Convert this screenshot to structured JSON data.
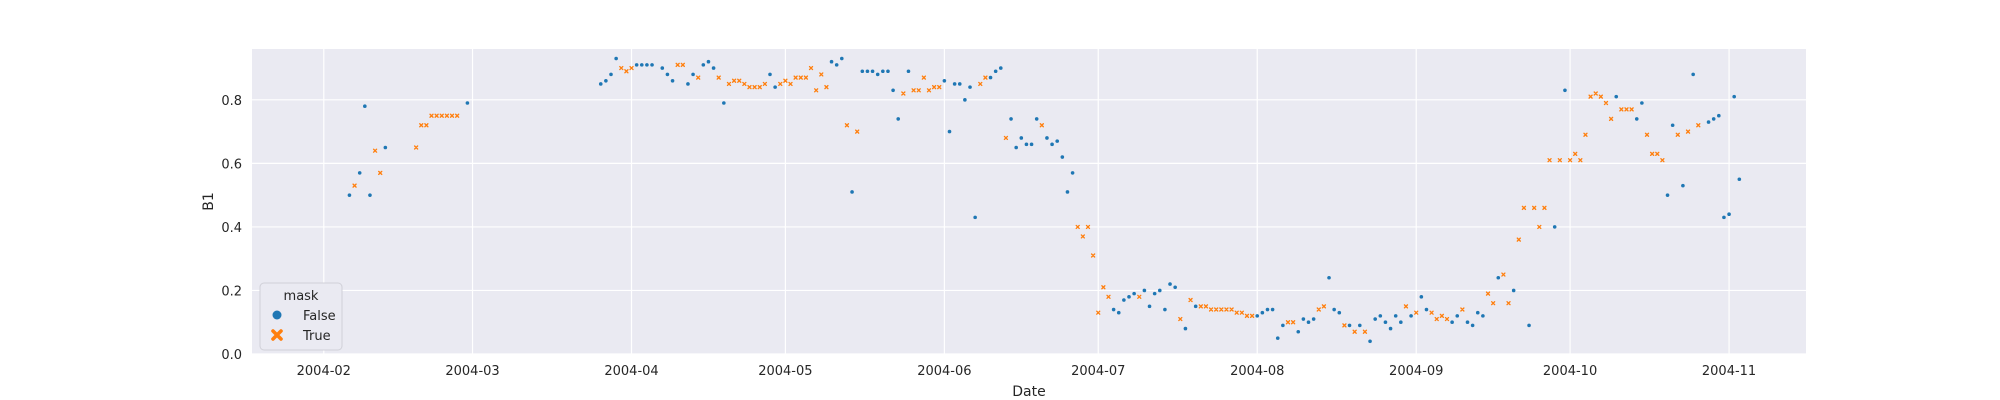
{
  "chart_data": {
    "type": "scatter",
    "title": "",
    "xlabel": "Date",
    "ylabel": "B1",
    "x_type": "date",
    "xlim": [
      "2004-01-18",
      "2004-11-16"
    ],
    "ylim": [
      0,
      0.96
    ],
    "x_ticks": [
      {
        "value": "2004-02-01",
        "label": "2004-02"
      },
      {
        "value": "2004-03-01",
        "label": "2004-03"
      },
      {
        "value": "2004-04-01",
        "label": "2004-04"
      },
      {
        "value": "2004-05-01",
        "label": "2004-05"
      },
      {
        "value": "2004-06-01",
        "label": "2004-06"
      },
      {
        "value": "2004-07-01",
        "label": "2004-07"
      },
      {
        "value": "2004-08-01",
        "label": "2004-08"
      },
      {
        "value": "2004-09-01",
        "label": "2004-09"
      },
      {
        "value": "2004-10-01",
        "label": "2004-10"
      },
      {
        "value": "2004-11-01",
        "label": "2004-11"
      }
    ],
    "y_ticks": [
      {
        "value": 0.0,
        "label": "0.0"
      },
      {
        "value": 0.2,
        "label": "0.2"
      },
      {
        "value": 0.4,
        "label": "0.4"
      },
      {
        "value": 0.6,
        "label": "0.6"
      },
      {
        "value": 0.8,
        "label": "0.8"
      }
    ],
    "grid": true,
    "background_color": "#eaeaf2",
    "grid_color": "#ffffff",
    "legend": {
      "title": "mask",
      "position": "lower-left",
      "entries": [
        {
          "label": "False",
          "marker": "circle",
          "color": "#1f77b4"
        },
        {
          "label": "True",
          "marker": "x",
          "color": "#ff7f0e"
        }
      ]
    },
    "series": [
      {
        "name": "False",
        "marker": "circle",
        "color": "#1f77b4",
        "x": [
          "2004-02-06",
          "2004-02-08",
          "2004-02-09",
          "2004-02-10",
          "2004-02-13",
          "2004-02-29",
          "2004-03-26",
          "2004-03-27",
          "2004-03-28",
          "2004-03-29",
          "2004-04-02",
          "2004-04-03",
          "2004-04-04",
          "2004-04-05",
          "2004-04-07",
          "2004-04-08",
          "2004-04-09",
          "2004-04-12",
          "2004-04-13",
          "2004-04-15",
          "2004-04-16",
          "2004-04-17",
          "2004-04-19",
          "2004-04-28",
          "2004-04-29",
          "2004-05-10",
          "2004-05-11",
          "2004-05-12",
          "2004-05-14",
          "2004-05-16",
          "2004-05-17",
          "2004-05-18",
          "2004-05-19",
          "2004-05-20",
          "2004-05-21",
          "2004-05-22",
          "2004-05-23",
          "2004-05-25",
          "2004-06-01",
          "2004-06-02",
          "2004-06-03",
          "2004-06-04",
          "2004-06-05",
          "2004-06-06",
          "2004-06-07",
          "2004-06-10",
          "2004-06-11",
          "2004-06-12",
          "2004-06-14",
          "2004-06-15",
          "2004-06-16",
          "2004-06-17",
          "2004-06-18",
          "2004-06-19",
          "2004-06-21",
          "2004-06-22",
          "2004-06-23",
          "2004-06-24",
          "2004-06-25",
          "2004-06-26",
          "2004-07-04",
          "2004-07-05",
          "2004-07-06",
          "2004-07-07",
          "2004-07-08",
          "2004-07-10",
          "2004-07-11",
          "2004-07-12",
          "2004-07-13",
          "2004-07-14",
          "2004-07-15",
          "2004-07-16",
          "2004-07-18",
          "2004-07-20",
          "2004-08-01",
          "2004-08-02",
          "2004-08-03",
          "2004-08-04",
          "2004-08-05",
          "2004-08-06",
          "2004-08-09",
          "2004-08-10",
          "2004-08-11",
          "2004-08-12",
          "2004-08-15",
          "2004-08-16",
          "2004-08-17",
          "2004-08-19",
          "2004-08-21",
          "2004-08-23",
          "2004-08-24",
          "2004-08-25",
          "2004-08-26",
          "2004-08-27",
          "2004-08-28",
          "2004-08-29",
          "2004-08-31",
          "2004-09-02",
          "2004-09-03",
          "2004-09-08",
          "2004-09-09",
          "2004-09-11",
          "2004-09-12",
          "2004-09-13",
          "2004-09-14",
          "2004-09-17",
          "2004-09-20",
          "2004-09-23",
          "2004-09-28",
          "2004-09-30",
          "2004-10-10",
          "2004-10-14",
          "2004-10-15",
          "2004-10-20",
          "2004-10-21",
          "2004-10-23",
          "2004-10-25",
          "2004-10-28",
          "2004-10-29",
          "2004-10-30",
          "2004-10-31",
          "2004-11-01",
          "2004-11-02",
          "2004-11-03"
        ],
        "y": [
          0.5,
          0.57,
          0.78,
          0.5,
          0.65,
          0.79,
          0.85,
          0.86,
          0.88,
          0.93,
          0.91,
          0.91,
          0.91,
          0.91,
          0.9,
          0.88,
          0.86,
          0.85,
          0.88,
          0.91,
          0.92,
          0.9,
          0.79,
          0.88,
          0.84,
          0.92,
          0.91,
          0.93,
          0.51,
          0.89,
          0.89,
          0.89,
          0.88,
          0.89,
          0.89,
          0.83,
          0.74,
          0.89,
          0.86,
          0.7,
          0.85,
          0.85,
          0.8,
          0.84,
          0.43,
          0.87,
          0.89,
          0.9,
          0.74,
          0.65,
          0.68,
          0.66,
          0.66,
          0.74,
          0.68,
          0.66,
          0.67,
          0.62,
          0.51,
          0.57,
          0.14,
          0.13,
          0.17,
          0.18,
          0.19,
          0.2,
          0.15,
          0.19,
          0.2,
          0.14,
          0.22,
          0.21,
          0.08,
          0.15,
          0.12,
          0.13,
          0.14,
          0.14,
          0.05,
          0.09,
          0.07,
          0.11,
          0.1,
          0.11,
          0.24,
          0.14,
          0.13,
          0.09,
          0.09,
          0.04,
          0.11,
          0.12,
          0.1,
          0.08,
          0.12,
          0.1,
          0.12,
          0.18,
          0.14,
          0.1,
          0.12,
          0.1,
          0.09,
          0.13,
          0.12,
          0.24,
          0.2,
          0.09,
          0.4,
          0.83,
          0.81,
          0.74,
          0.79,
          0.5,
          0.72,
          0.53,
          0.88,
          0.73,
          0.74,
          0.75,
          0.43,
          0.44,
          0.81,
          0.55
        ]
      },
      {
        "name": "True",
        "marker": "x",
        "color": "#ff7f0e",
        "x": [
          "2004-02-07",
          "2004-02-11",
          "2004-02-12",
          "2004-02-19",
          "2004-02-20",
          "2004-02-21",
          "2004-02-22",
          "2004-02-23",
          "2004-02-24",
          "2004-02-25",
          "2004-02-26",
          "2004-02-27",
          "2004-03-30",
          "2004-03-31",
          "2004-04-01",
          "2004-04-10",
          "2004-04-11",
          "2004-04-14",
          "2004-04-18",
          "2004-04-20",
          "2004-04-21",
          "2004-04-22",
          "2004-04-23",
          "2004-04-24",
          "2004-04-25",
          "2004-04-26",
          "2004-04-27",
          "2004-04-30",
          "2004-05-01",
          "2004-05-02",
          "2004-05-03",
          "2004-05-04",
          "2004-05-05",
          "2004-05-06",
          "2004-05-07",
          "2004-05-08",
          "2004-05-09",
          "2004-05-13",
          "2004-05-15",
          "2004-05-24",
          "2004-05-26",
          "2004-05-27",
          "2004-05-28",
          "2004-05-29",
          "2004-05-30",
          "2004-05-31",
          "2004-06-08",
          "2004-06-09",
          "2004-06-13",
          "2004-06-20",
          "2004-06-27",
          "2004-06-28",
          "2004-06-29",
          "2004-06-30",
          "2004-07-01",
          "2004-07-02",
          "2004-07-03",
          "2004-07-09",
          "2004-07-17",
          "2004-07-19",
          "2004-07-21",
          "2004-07-22",
          "2004-07-23",
          "2004-07-24",
          "2004-07-25",
          "2004-07-26",
          "2004-07-27",
          "2004-07-28",
          "2004-07-29",
          "2004-07-30",
          "2004-07-31",
          "2004-08-07",
          "2004-08-08",
          "2004-08-13",
          "2004-08-14",
          "2004-08-18",
          "2004-08-20",
          "2004-08-22",
          "2004-08-30",
          "2004-09-01",
          "2004-09-04",
          "2004-09-05",
          "2004-09-06",
          "2004-09-07",
          "2004-09-10",
          "2004-09-15",
          "2004-09-16",
          "2004-09-18",
          "2004-09-19",
          "2004-09-21",
          "2004-09-22",
          "2004-09-24",
          "2004-09-25",
          "2004-09-26",
          "2004-09-27",
          "2004-09-29",
          "2004-10-01",
          "2004-10-02",
          "2004-10-03",
          "2004-10-04",
          "2004-10-05",
          "2004-10-06",
          "2004-10-07",
          "2004-10-08",
          "2004-10-09",
          "2004-10-11",
          "2004-10-12",
          "2004-10-13",
          "2004-10-16",
          "2004-10-17",
          "2004-10-18",
          "2004-10-19",
          "2004-10-22",
          "2004-10-24",
          "2004-10-26"
        ],
        "y": [
          0.53,
          0.64,
          0.57,
          0.65,
          0.72,
          0.72,
          0.75,
          0.75,
          0.75,
          0.75,
          0.75,
          0.75,
          0.9,
          0.89,
          0.9,
          0.91,
          0.91,
          0.87,
          0.87,
          0.85,
          0.86,
          0.86,
          0.85,
          0.84,
          0.84,
          0.84,
          0.85,
          0.85,
          0.86,
          0.85,
          0.87,
          0.87,
          0.87,
          0.9,
          0.83,
          0.88,
          0.84,
          0.72,
          0.7,
          0.82,
          0.83,
          0.83,
          0.87,
          0.83,
          0.84,
          0.84,
          0.85,
          0.87,
          0.68,
          0.72,
          0.4,
          0.37,
          0.4,
          0.31,
          0.13,
          0.21,
          0.18,
          0.18,
          0.11,
          0.17,
          0.15,
          0.15,
          0.14,
          0.14,
          0.14,
          0.14,
          0.14,
          0.13,
          0.13,
          0.12,
          0.12,
          0.1,
          0.1,
          0.14,
          0.15,
          0.09,
          0.07,
          0.07,
          0.15,
          0.13,
          0.13,
          0.11,
          0.12,
          0.11,
          0.14,
          0.19,
          0.16,
          0.25,
          0.16,
          0.36,
          0.46,
          0.46,
          0.4,
          0.46,
          0.61,
          0.61,
          0.61,
          0.63,
          0.61,
          0.69,
          0.81,
          0.82,
          0.81,
          0.79,
          0.74,
          0.77,
          0.77,
          0.77,
          0.69,
          0.63,
          0.63,
          0.61,
          0.69,
          0.7,
          0.72
        ]
      }
    ]
  }
}
